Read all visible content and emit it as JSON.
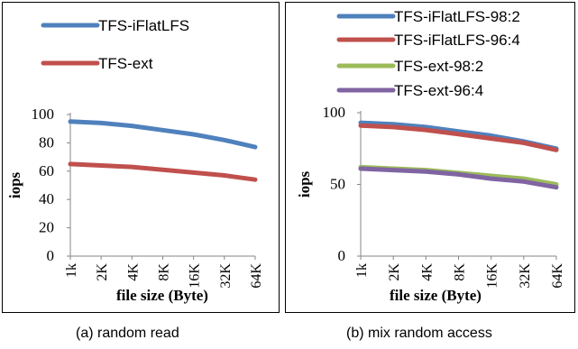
{
  "chart_data": [
    {
      "type": "line",
      "caption": "(a)  random read",
      "categories": [
        "1k",
        "2K",
        "4K",
        "8K",
        "16K",
        "32K",
        "64K"
      ],
      "xlabel": "file size (Byte)",
      "ylabel": "iops",
      "ylim": [
        0,
        100
      ],
      "yticks": [
        0,
        20,
        40,
        60,
        80,
        100
      ],
      "grid": false,
      "legend": "top",
      "series": [
        {
          "name": "TFS-iFlatLFS",
          "color": "#4f81bd",
          "values": [
            95,
            94,
            92,
            89,
            86,
            82,
            77
          ]
        },
        {
          "name": "TFS-ext",
          "color": "#c0504d",
          "values": [
            65,
            64,
            63,
            61,
            59,
            57,
            54
          ]
        }
      ]
    },
    {
      "type": "line",
      "caption": "(b)  mix random access",
      "categories": [
        "1k",
        "2K",
        "4K",
        "8K",
        "16K",
        "32K",
        "64K"
      ],
      "xlabel": "file size (Byte)",
      "ylabel": "iops",
      "ylim": [
        0,
        100
      ],
      "yticks": [
        0,
        50,
        100
      ],
      "grid": false,
      "legend": "top",
      "series": [
        {
          "name": "TFS-iFlatLFS-98:2",
          "color": "#4f81bd",
          "values": [
            93,
            92,
            90,
            87,
            84,
            80,
            75
          ]
        },
        {
          "name": "TFS-iFlatLFS-96:4",
          "color": "#c0504d",
          "values": [
            91,
            90,
            88,
            85,
            82,
            79,
            74
          ]
        },
        {
          "name": "TFS-ext-98:2",
          "color": "#9bbb59",
          "values": [
            62,
            61,
            60,
            58,
            56,
            54,
            50
          ]
        },
        {
          "name": "TFS-ext-96:4",
          "color": "#8064a2",
          "values": [
            61,
            60,
            59,
            57,
            54,
            52,
            48
          ]
        }
      ]
    }
  ]
}
